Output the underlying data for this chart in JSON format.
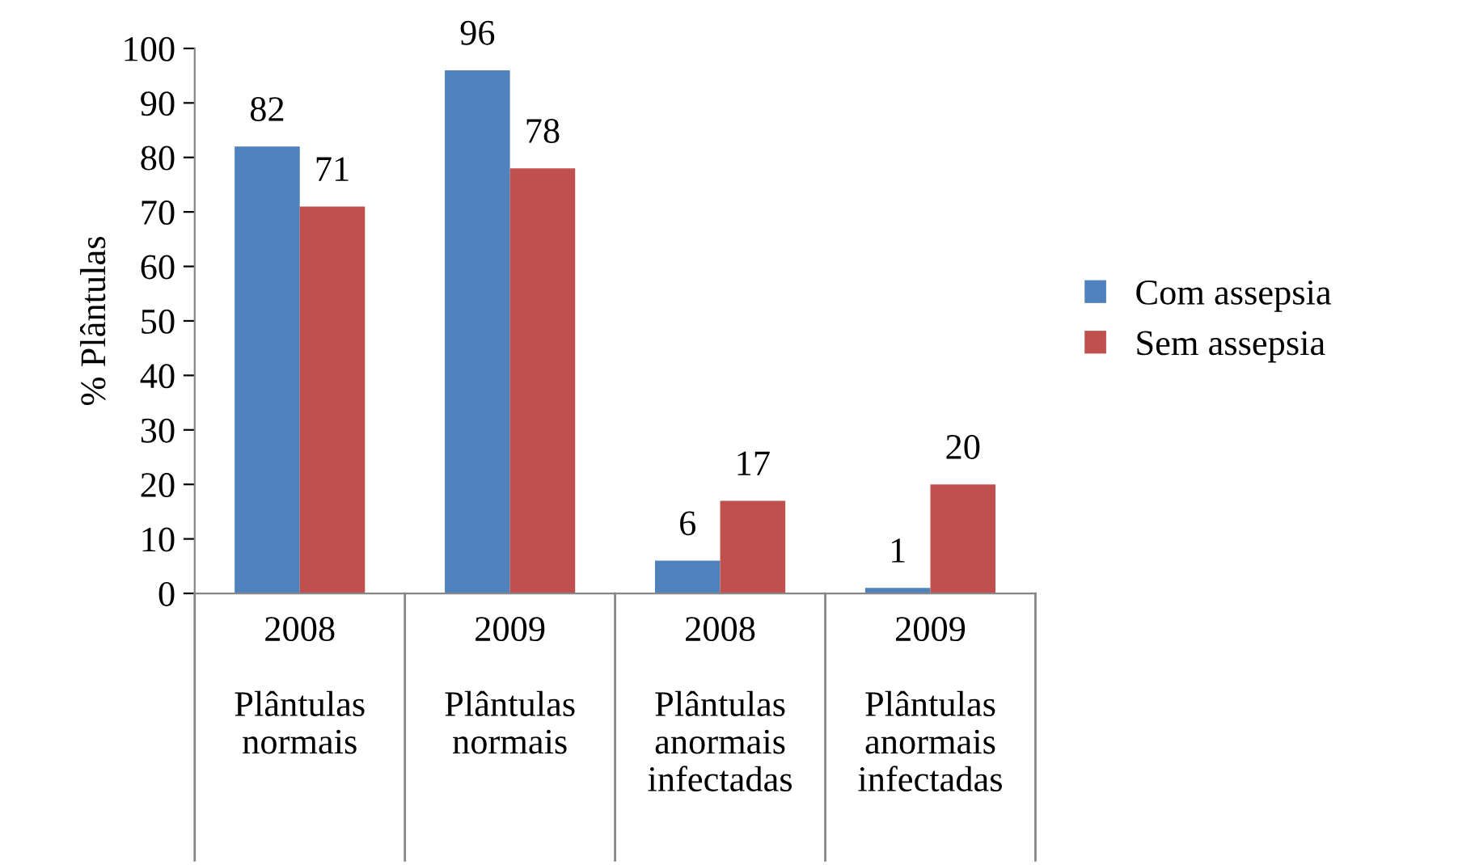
{
  "chart_data": {
    "type": "bar",
    "ylabel": "% Plântulas",
    "categories": [
      "2008\n\nPlântulas\nnormais",
      "2009\n\nPlântulas\nnormais",
      "2008\n\nPlântulas\nanormais\ninfectadas",
      "2009\n\nPlântulas\nanormais\ninfectadas"
    ],
    "series": [
      {
        "name": "Com assepsia",
        "color": "#4f81bd",
        "values": [
          82,
          96,
          6,
          1
        ]
      },
      {
        "name": "Sem assepsia",
        "color": "#c0504d",
        "values": [
          71,
          78,
          17,
          20
        ]
      }
    ],
    "ylim": [
      0,
      100
    ],
    "yticks": [
      0,
      10,
      20,
      30,
      40,
      50,
      60,
      70,
      80,
      90,
      100
    ],
    "data_labels": true,
    "grid": false,
    "legend": "right"
  }
}
